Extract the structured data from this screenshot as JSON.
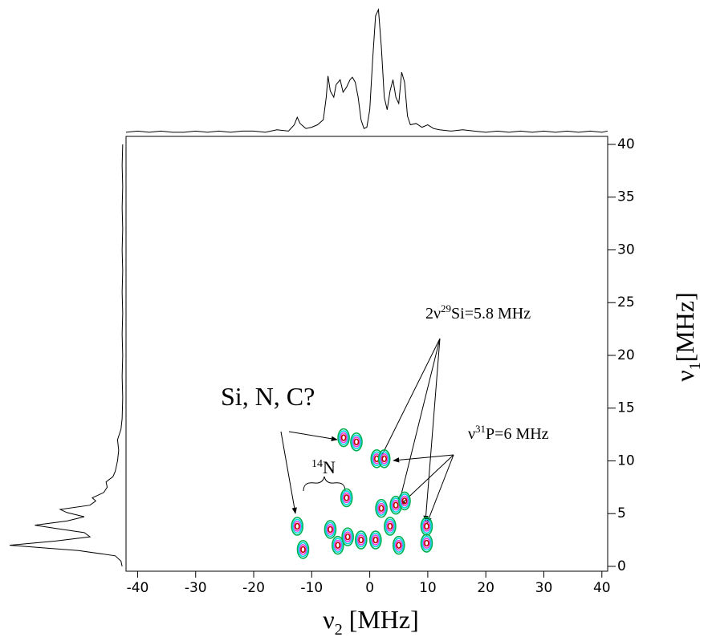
{
  "chart_data": {
    "type": "contour",
    "x_label": {
      "symbol": "ν",
      "subscript": "2",
      "unit": " [MHz]"
    },
    "y_label": {
      "symbol": "ν",
      "subscript": "1",
      "unit": "[MHz]"
    },
    "xlim": [
      -42,
      41
    ],
    "ylim": [
      -0.46,
      40.76
    ],
    "xticks": [
      -40,
      -30,
      -20,
      -10,
      0,
      10,
      20,
      30,
      40
    ],
    "yticks": [
      0,
      5,
      10,
      15,
      20,
      25,
      30,
      35,
      40
    ],
    "contour_colors": [
      "#00b050",
      "#00d8e0",
      "#e040e0",
      "#c00000"
    ],
    "contour_peaks": {
      "x": [
        -12.5,
        -11.5,
        -4.5,
        -2.3,
        1.2,
        2.5,
        -4,
        -6.8,
        -5.5,
        -3.8,
        -1.5,
        1,
        2,
        3.5,
        4.5,
        5,
        6,
        9.8,
        9.8
      ],
      "y": [
        3.8,
        1.6,
        12.2,
        11.8,
        10.2,
        10.2,
        6.5,
        3.5,
        2,
        2.8,
        2.5,
        2.5,
        5.5,
        3.8,
        5.8,
        2,
        6.2,
        2.2,
        3.8
      ]
    },
    "top_projection": {
      "x": [
        -42,
        -40,
        -38,
        -36,
        -34,
        -32,
        -30,
        -28,
        -26,
        -24,
        -22,
        -20,
        -18,
        -16,
        -14,
        -13,
        -12.5,
        -12,
        -11,
        -10,
        -9,
        -8,
        -7.5,
        -7.2,
        -6.8,
        -6.2,
        -5.8,
        -5.1,
        -4.6,
        -4,
        -3.4,
        -3,
        -2.5,
        -2,
        -1.5,
        -1,
        -0.5,
        0,
        0.5,
        1,
        1.5,
        2,
        2.5,
        3,
        3.5,
        4,
        4.5,
        5,
        5.5,
        6,
        6.5,
        7,
        8,
        9,
        10,
        11,
        12,
        14,
        16,
        18,
        20,
        22,
        24,
        26,
        28,
        30,
        32,
        34,
        36,
        38,
        40,
        41
      ],
      "values": [
        2,
        3,
        2,
        3,
        2,
        2,
        3,
        2,
        3,
        2,
        3,
        3,
        2,
        4,
        3,
        8,
        14,
        9,
        5,
        6,
        8,
        12,
        30,
        47,
        35,
        30,
        40,
        44,
        34,
        38,
        44,
        46,
        42,
        30,
        12,
        5,
        6,
        20,
        60,
        95,
        100,
        70,
        30,
        20,
        35,
        44,
        30,
        25,
        50,
        42,
        15,
        8,
        9,
        6,
        8,
        5,
        4,
        3,
        4,
        3,
        2,
        3,
        2,
        3,
        2,
        3,
        2,
        3,
        2,
        3,
        2,
        3
      ]
    },
    "left_projection": {
      "y": [
        0,
        0.5,
        1,
        1.5,
        2,
        2.4,
        2.8,
        3.2,
        3.6,
        3.9,
        4.3,
        4.7,
        5.1,
        5.4,
        5.8,
        6.2,
        6.5,
        7,
        7.5,
        8,
        8.5,
        9,
        10,
        11,
        12,
        13,
        14,
        16,
        18,
        20,
        22,
        24,
        26,
        28,
        30,
        32,
        34,
        36,
        38,
        40
      ],
      "values": [
        2,
        3,
        8,
        40,
        100,
        60,
        30,
        35,
        60,
        78,
        50,
        35,
        50,
        56,
        30,
        25,
        28,
        18,
        15,
        16,
        10,
        8,
        6,
        5,
        6,
        3,
        2,
        1.5,
        2,
        1.5,
        2,
        1.5,
        2,
        1.5,
        2,
        1.5,
        2,
        1.5,
        2,
        1.5
      ]
    },
    "annotations": [
      {
        "parts": [
          {
            "text": "Si, N, C?"
          }
        ]
      },
      {
        "parts": [
          {
            "text": "14",
            "sup": true
          },
          {
            "text": "N"
          }
        ]
      },
      {
        "parts": [
          {
            "text": "2ν"
          },
          {
            "text": "29",
            "sup": true
          },
          {
            "text": "Si=5.8 MHz"
          }
        ]
      },
      {
        "parts": [
          {
            "text": "ν"
          },
          {
            "text": "31",
            "sup": true
          },
          {
            "text": "P=6 MHz"
          }
        ]
      }
    ]
  }
}
